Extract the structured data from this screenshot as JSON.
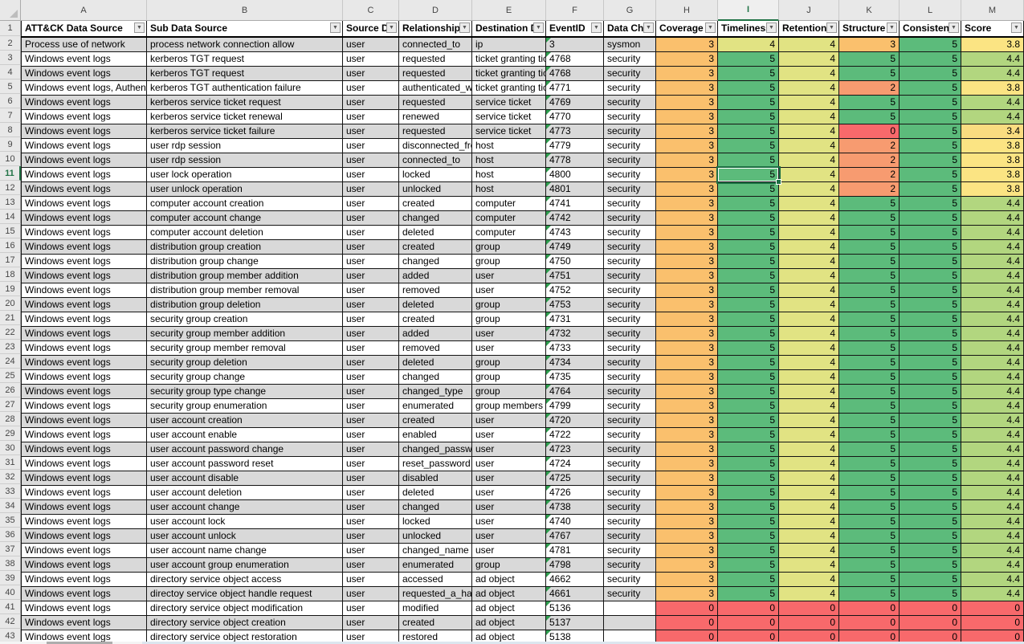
{
  "app": {
    "type": "spreadsheet-grid"
  },
  "accent_color": "#217346",
  "band_color": "#D9D9D9",
  "error_triangle_color": "#2E9E4F",
  "score_colors": {
    "0": "#F8696B",
    "2": "#F79B70",
    "3": "#FAC06D",
    "4": "#E1E383",
    "5": "#5CBB7B",
    "3.4": "#FADC80",
    "3.8": "#FBE483",
    "4.4": "#B2D67F"
  },
  "selection": {
    "cell": "I11",
    "row_number": "11",
    "column_letter": "I"
  },
  "columns": [
    {
      "letter": "A",
      "header": "ATT&CK Data Source",
      "has_filter": true
    },
    {
      "letter": "B",
      "header": "Sub Data Source",
      "has_filter": true
    },
    {
      "letter": "C",
      "header": "Source Da",
      "has_filter": true
    },
    {
      "letter": "D",
      "header": "Relationship",
      "has_filter": true
    },
    {
      "letter": "E",
      "header": "Destination D",
      "has_filter": true
    },
    {
      "letter": "F",
      "header": "EventID",
      "has_filter": true
    },
    {
      "letter": "G",
      "header": "Data Cha",
      "has_filter": true
    },
    {
      "letter": "H",
      "header": "Coverage",
      "has_filter": true
    },
    {
      "letter": "I",
      "header": "Timeliness",
      "has_filter": true
    },
    {
      "letter": "J",
      "header": "Retention",
      "has_filter": true
    },
    {
      "letter": "K",
      "header": "Structure",
      "has_filter": true
    },
    {
      "letter": "L",
      "header": "Consistenc",
      "has_filter": true
    },
    {
      "letter": "M",
      "header": "Score",
      "has_filter": true
    }
  ],
  "rows": [
    {
      "n": "2",
      "values": [
        "Process use of network",
        "process network connection allow",
        "user",
        "connected_to",
        "ip",
        "3",
        "sysmon",
        "3",
        "4",
        "4",
        "3",
        "5",
        "3.8"
      ]
    },
    {
      "n": "3",
      "values": [
        "Windows event logs",
        "kerberos TGT request",
        "user",
        "requested",
        "ticket granting ticket",
        "4768",
        "security",
        "3",
        "5",
        "4",
        "5",
        "5",
        "4.4"
      ]
    },
    {
      "n": "4",
      "values": [
        "Windows event logs",
        "kerberos TGT request",
        "user",
        "requested",
        "ticket granting ticket",
        "4768",
        "security",
        "3",
        "5",
        "4",
        "5",
        "5",
        "4.4"
      ]
    },
    {
      "n": "5",
      "values": [
        "Windows event logs, Authentication",
        "kerberos TGT authentication failure",
        "user",
        "authenticated_with",
        "ticket granting ticket",
        "4771",
        "security",
        "3",
        "5",
        "4",
        "2",
        "5",
        "3.8"
      ]
    },
    {
      "n": "6",
      "values": [
        "Windows event logs",
        "kerberos service ticket request",
        "user",
        "requested",
        "service ticket",
        "4769",
        "security",
        "3",
        "5",
        "4",
        "5",
        "5",
        "4.4"
      ]
    },
    {
      "n": "7",
      "values": [
        "Windows event logs",
        "kerberos service ticket renewal",
        "user",
        "renewed",
        "service ticket",
        "4770",
        "security",
        "3",
        "5",
        "4",
        "5",
        "5",
        "4.4"
      ]
    },
    {
      "n": "8",
      "values": [
        "Windows event logs",
        "kerberos service ticket failure",
        "user",
        "requested",
        "service ticket",
        "4773",
        "security",
        "3",
        "5",
        "4",
        "0",
        "5",
        "3.4"
      ]
    },
    {
      "n": "9",
      "values": [
        "Windows event logs",
        "user rdp session",
        "user",
        "disconnected_from",
        "host",
        "4779",
        "security",
        "3",
        "5",
        "4",
        "2",
        "5",
        "3.8"
      ]
    },
    {
      "n": "10",
      "values": [
        "Windows event logs",
        "user rdp session",
        "user",
        "connected_to",
        "host",
        "4778",
        "security",
        "3",
        "5",
        "4",
        "2",
        "5",
        "3.8"
      ]
    },
    {
      "n": "11",
      "values": [
        "Windows event logs",
        "user lock operation",
        "user",
        "locked",
        "host",
        "4800",
        "security",
        "3",
        "5",
        "4",
        "2",
        "5",
        "3.8"
      ]
    },
    {
      "n": "12",
      "values": [
        "Windows event logs",
        "user unlock operation",
        "user",
        "unlocked",
        "host",
        "4801",
        "security",
        "3",
        "5",
        "4",
        "2",
        "5",
        "3.8"
      ]
    },
    {
      "n": "13",
      "values": [
        "Windows event logs",
        "computer account creation",
        "user",
        "created",
        "computer",
        "4741",
        "security",
        "3",
        "5",
        "4",
        "5",
        "5",
        "4.4"
      ]
    },
    {
      "n": "14",
      "values": [
        "Windows event logs",
        "computer account change",
        "user",
        "changed",
        "computer",
        "4742",
        "security",
        "3",
        "5",
        "4",
        "5",
        "5",
        "4.4"
      ]
    },
    {
      "n": "15",
      "values": [
        "Windows event logs",
        "computer account deletion",
        "user",
        "deleted",
        "computer",
        "4743",
        "security",
        "3",
        "5",
        "4",
        "5",
        "5",
        "4.4"
      ]
    },
    {
      "n": "16",
      "values": [
        "Windows event logs",
        "distribution group creation",
        "user",
        "created",
        "group",
        "4749",
        "security",
        "3",
        "5",
        "4",
        "5",
        "5",
        "4.4"
      ]
    },
    {
      "n": "17",
      "values": [
        "Windows event logs",
        "distribution group change",
        "user",
        "changed",
        "group",
        "4750",
        "security",
        "3",
        "5",
        "4",
        "5",
        "5",
        "4.4"
      ]
    },
    {
      "n": "18",
      "values": [
        "Windows event logs",
        "distribution group member addition",
        "user",
        "added",
        "user",
        "4751",
        "security",
        "3",
        "5",
        "4",
        "5",
        "5",
        "4.4"
      ]
    },
    {
      "n": "19",
      "values": [
        "Windows event logs",
        "distribution group member removal",
        "user",
        "removed",
        "user",
        "4752",
        "security",
        "3",
        "5",
        "4",
        "5",
        "5",
        "4.4"
      ]
    },
    {
      "n": "20",
      "values": [
        "Windows event logs",
        "distribution group deletion",
        "user",
        "deleted",
        "group",
        "4753",
        "security",
        "3",
        "5",
        "4",
        "5",
        "5",
        "4.4"
      ]
    },
    {
      "n": "21",
      "values": [
        "Windows event logs",
        "security group creation",
        "user",
        "created",
        "group",
        "4731",
        "security",
        "3",
        "5",
        "4",
        "5",
        "5",
        "4.4"
      ]
    },
    {
      "n": "22",
      "values": [
        "Windows event logs",
        "security group member addition",
        "user",
        "added",
        "user",
        "4732",
        "security",
        "3",
        "5",
        "4",
        "5",
        "5",
        "4.4"
      ]
    },
    {
      "n": "23",
      "values": [
        "Windows event logs",
        "security group member removal",
        "user",
        "removed",
        "user",
        "4733",
        "security",
        "3",
        "5",
        "4",
        "5",
        "5",
        "4.4"
      ]
    },
    {
      "n": "24",
      "values": [
        "Windows event logs",
        "security group deletion",
        "user",
        "deleted",
        "group",
        "4734",
        "security",
        "3",
        "5",
        "4",
        "5",
        "5",
        "4.4"
      ]
    },
    {
      "n": "25",
      "values": [
        "Windows event logs",
        "security group change",
        "user",
        "changed",
        "group",
        "4735",
        "security",
        "3",
        "5",
        "4",
        "5",
        "5",
        "4.4"
      ]
    },
    {
      "n": "26",
      "values": [
        "Windows event logs",
        "security group type change",
        "user",
        "changed_type",
        "group",
        "4764",
        "security",
        "3",
        "5",
        "4",
        "5",
        "5",
        "4.4"
      ]
    },
    {
      "n": "27",
      "values": [
        "Windows event logs",
        "security group enumeration",
        "user",
        "enumerated",
        "group members",
        "4799",
        "security",
        "3",
        "5",
        "4",
        "5",
        "5",
        "4.4"
      ]
    },
    {
      "n": "28",
      "values": [
        "Windows event logs",
        "user account creation",
        "user",
        "created",
        "user",
        "4720",
        "security",
        "3",
        "5",
        "4",
        "5",
        "5",
        "4.4"
      ]
    },
    {
      "n": "29",
      "values": [
        "Windows event logs",
        "user account enable",
        "user",
        "enabled",
        "user",
        "4722",
        "security",
        "3",
        "5",
        "4",
        "5",
        "5",
        "4.4"
      ]
    },
    {
      "n": "30",
      "values": [
        "Windows event logs",
        "user account password change",
        "user",
        "changed_password",
        "user",
        "4723",
        "security",
        "3",
        "5",
        "4",
        "5",
        "5",
        "4.4"
      ]
    },
    {
      "n": "31",
      "values": [
        "Windows event logs",
        "user account password reset",
        "user",
        "reset_password",
        "user",
        "4724",
        "security",
        "3",
        "5",
        "4",
        "5",
        "5",
        "4.4"
      ]
    },
    {
      "n": "32",
      "values": [
        "Windows event logs",
        "user account disable",
        "user",
        "disabled",
        "user",
        "4725",
        "security",
        "3",
        "5",
        "4",
        "5",
        "5",
        "4.4"
      ]
    },
    {
      "n": "33",
      "values": [
        "Windows event logs",
        "user account deletion",
        "user",
        "deleted",
        "user",
        "4726",
        "security",
        "3",
        "5",
        "4",
        "5",
        "5",
        "4.4"
      ]
    },
    {
      "n": "34",
      "values": [
        "Windows event logs",
        "user account change",
        "user",
        "changed",
        "user",
        "4738",
        "security",
        "3",
        "5",
        "4",
        "5",
        "5",
        "4.4"
      ]
    },
    {
      "n": "35",
      "values": [
        "Windows event logs",
        "user account lock",
        "user",
        "locked",
        "user",
        "4740",
        "security",
        "3",
        "5",
        "4",
        "5",
        "5",
        "4.4"
      ]
    },
    {
      "n": "36",
      "values": [
        "Windows event logs",
        "user account unlock",
        "user",
        "unlocked",
        "user",
        "4767",
        "security",
        "3",
        "5",
        "4",
        "5",
        "5",
        "4.4"
      ]
    },
    {
      "n": "37",
      "values": [
        "Windows event logs",
        "user account name change",
        "user",
        "changed_name",
        "user",
        "4781",
        "security",
        "3",
        "5",
        "4",
        "5",
        "5",
        "4.4"
      ]
    },
    {
      "n": "38",
      "values": [
        "Windows event logs",
        "user account group enumeration",
        "user",
        "enumerated",
        "group",
        "4798",
        "security",
        "3",
        "5",
        "4",
        "5",
        "5",
        "4.4"
      ]
    },
    {
      "n": "39",
      "values": [
        "Windows event logs",
        "directory service object access",
        "user",
        "accessed",
        "ad object",
        "4662",
        "security",
        "3",
        "5",
        "4",
        "5",
        "5",
        "4.4"
      ]
    },
    {
      "n": "40",
      "values": [
        "Windows event logs",
        "directoy service object handle request",
        "user",
        "requested_a_handle",
        "ad object",
        "4661",
        "security",
        "3",
        "5",
        "4",
        "5",
        "5",
        "4.4"
      ]
    },
    {
      "n": "41",
      "values": [
        "Windows event logs",
        "directory service object modification",
        "user",
        "modified",
        "ad object",
        "5136",
        "",
        "0",
        "0",
        "0",
        "0",
        "0",
        "0"
      ]
    },
    {
      "n": "42",
      "values": [
        "Windows event logs",
        "directory service object creation",
        "user",
        "created",
        "ad object",
        "5137",
        "",
        "0",
        "0",
        "0",
        "0",
        "0",
        "0"
      ]
    },
    {
      "n": "43",
      "values": [
        "Windows event logs",
        "directory service object restoration",
        "user",
        "restored",
        "ad object",
        "5138",
        "",
        "0",
        "0",
        "0",
        "0",
        "0",
        "0"
      ]
    }
  ]
}
